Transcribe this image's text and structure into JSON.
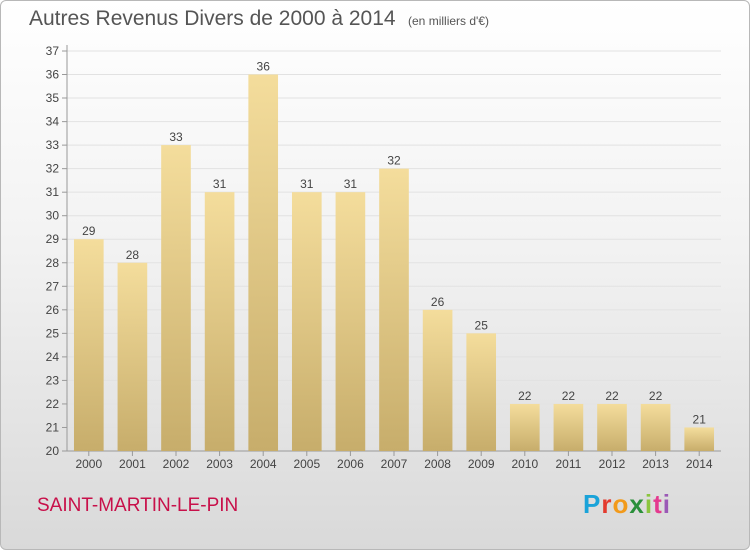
{
  "title": "Autres Revenus Divers de 2000 à 2014",
  "unit": "(en milliers d'€)",
  "commune": "SAINT-MARTIN-LE-PIN",
  "logo": {
    "letters": [
      "P",
      "r",
      "o",
      "x",
      "i",
      "t",
      "i"
    ],
    "colors": [
      "#1aa3d9",
      "#e33b2f",
      "#f29a1b",
      "#2a8f3a",
      "#8bc53f",
      "#e43a8f",
      "#9b59b6"
    ]
  },
  "colors": {
    "bar_top": "#f4dd9c",
    "bar_bottom": "#c7ad6b",
    "commune": "#c8104a"
  },
  "chart_data": {
    "type": "bar",
    "categories": [
      "2000",
      "2001",
      "2002",
      "2003",
      "2004",
      "2005",
      "2006",
      "2007",
      "2008",
      "2009",
      "2010",
      "2011",
      "2012",
      "2013",
      "2014"
    ],
    "values": [
      29,
      28,
      33,
      31,
      36,
      31,
      31,
      32,
      26,
      25,
      22,
      22,
      22,
      22,
      21
    ],
    "ylim": [
      20,
      37
    ],
    "yticks": [
      20,
      21,
      22,
      23,
      24,
      25,
      26,
      27,
      28,
      29,
      30,
      31,
      32,
      33,
      34,
      35,
      36,
      37
    ],
    "grid": true
  }
}
